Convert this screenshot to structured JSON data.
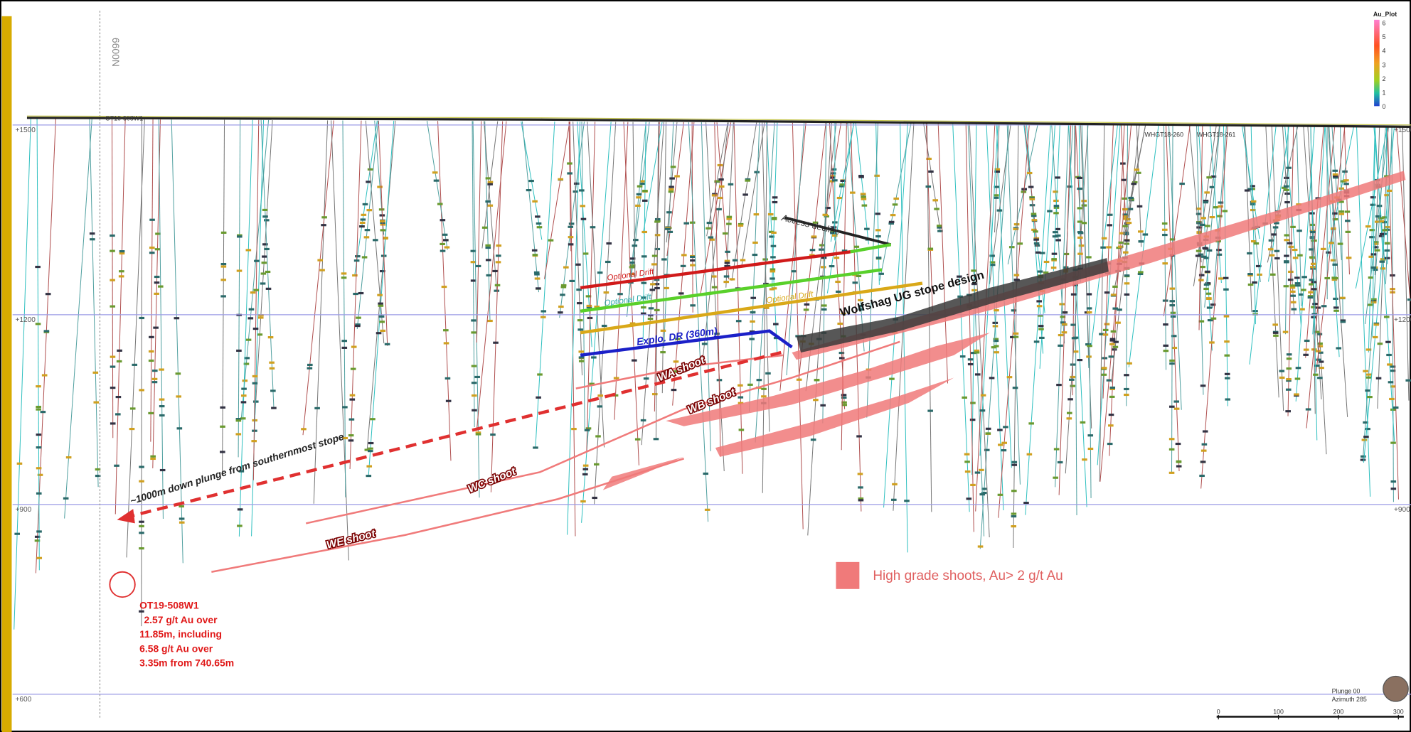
{
  "section": {
    "northing": "6600N",
    "elevations": [
      "+1500",
      "+1200",
      "+900",
      "+600"
    ],
    "collars": [
      "OT19-508W1",
      "WHGT18-260",
      "WHGT18-261"
    ]
  },
  "annotations": {
    "access_decline": "Access decline",
    "optional_drift": "Optional Drift",
    "explo_drift": "Explo. DR (360m)",
    "stope_design": "Wolfshag UG stope design",
    "shoots": [
      "WA shoot",
      "WB shoot",
      "WC shoot",
      "WE shoot"
    ],
    "plunge_note": "~1000m down plunge from southernmost stope",
    "intercept": [
      "OT19-508W1",
      "2.57 g/t Au over",
      "11.85m, including",
      "6.58 g/t Au over",
      "3.35m from 740.65m"
    ]
  },
  "legend": {
    "label": "High grade shoots, Au> 2 g/t Au"
  },
  "colorbar": {
    "title": "Au_Plot",
    "ticks": [
      6,
      5,
      4,
      3,
      2,
      1,
      0
    ]
  },
  "view": {
    "plunge": "Plunge 00",
    "azimuth": "Azimuth 285"
  },
  "scale_bar": {
    "ticks": [
      0,
      100,
      200,
      300
    ]
  }
}
